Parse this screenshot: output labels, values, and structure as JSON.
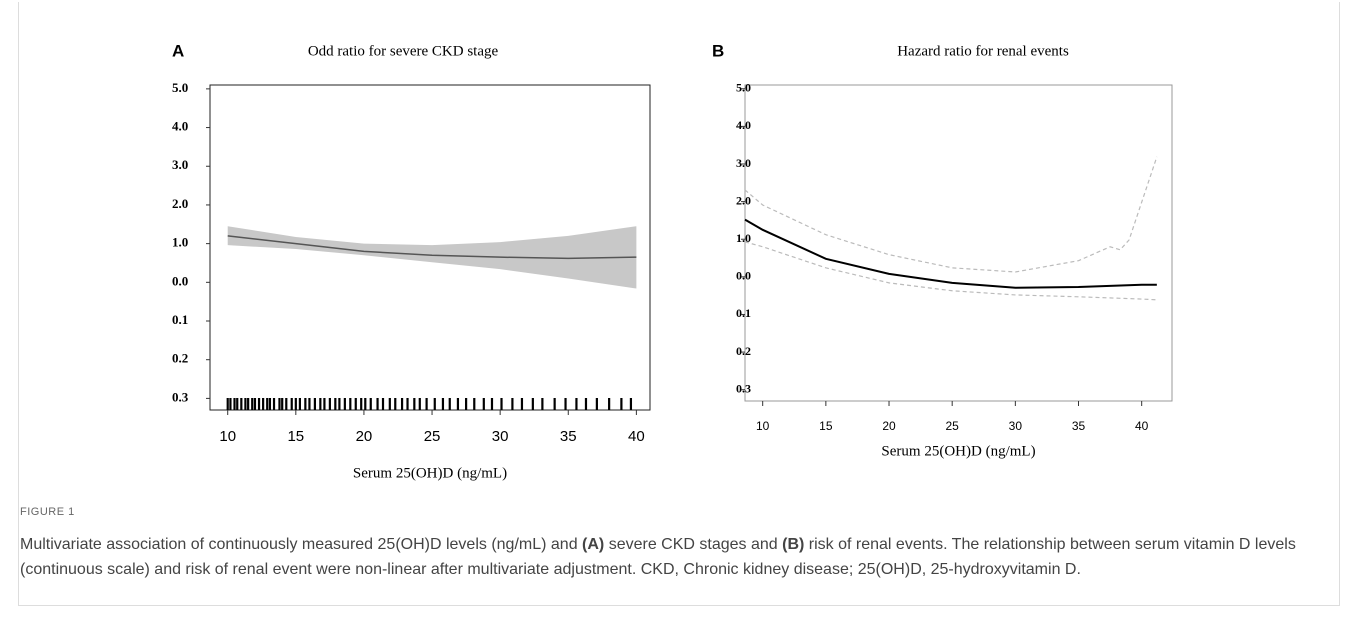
{
  "chart_data": [
    {
      "type": "line",
      "panel": "A",
      "title": "Odd ratio for severe CKD stage",
      "x_label": "Serum 25(OH)D (ng/mL)",
      "xlim": [
        8.7,
        41
      ],
      "xticks": [
        10,
        15,
        20,
        25,
        30,
        35,
        40
      ],
      "ylim": [
        -0.3,
        8.1
      ],
      "yticks": [
        {
          "value": 8,
          "label": "5.0"
        },
        {
          "value": 7,
          "label": "4.0"
        },
        {
          "value": 6,
          "label": "3.0"
        },
        {
          "value": 5,
          "label": "2.0"
        },
        {
          "value": 4,
          "label": "1.0"
        },
        {
          "value": 3,
          "label": "0.0"
        },
        {
          "value": 2,
          "label": "0.1"
        },
        {
          "value": 1,
          "label": "0.2"
        },
        {
          "value": 0,
          "label": "0.3"
        }
      ],
      "x": [
        10,
        15,
        20,
        25,
        30,
        35,
        40
      ],
      "series": [
        {
          "color": "#c8c8c8",
          "upper": [
            4.45,
            4.17,
            4.0,
            3.96,
            4.04,
            4.2,
            4.45
          ],
          "lower": [
            3.96,
            3.86,
            3.7,
            3.52,
            3.34,
            3.1,
            2.84
          ]
        },
        {
          "color": "#555555",
          "values": [
            4.2,
            4.0,
            3.8,
            3.7,
            3.65,
            3.62,
            3.65
          ]
        }
      ],
      "rug": [
        10,
        10.2,
        10.5,
        10.7,
        11,
        11.3,
        11.5,
        11.8,
        12,
        12.3,
        12.6,
        12.9,
        13.1,
        13.4,
        13.8,
        14,
        14.3,
        14.7,
        15,
        15.3,
        15.7,
        16,
        16.4,
        16.8,
        17.1,
        17.5,
        17.9,
        18.2,
        18.6,
        19,
        19.4,
        19.8,
        20.1,
        20.5,
        21,
        21.4,
        21.9,
        22.3,
        22.8,
        23.2,
        23.7,
        24.1,
        24.6,
        25.2,
        25.8,
        26.3,
        26.9,
        27.5,
        28.1,
        28.8,
        29.4,
        30.1,
        30.9,
        31.6,
        32.4,
        33.1,
        34,
        34.8,
        35.6,
        36.3,
        37.1,
        38,
        38.9,
        39.6
      ]
    },
    {
      "type": "line",
      "panel": "B",
      "title": "Hazard ratio for renal events",
      "x_label": "Serum 25(OH)D (ng/mL)",
      "xlim": [
        8.6,
        42.4
      ],
      "xticks": [
        10,
        15,
        20,
        25,
        30,
        35,
        40
      ],
      "ylim": [
        -0.3,
        8.1
      ],
      "yticks": [
        {
          "value": 8,
          "label": "5.0"
        },
        {
          "value": 7,
          "label": "4.0"
        },
        {
          "value": 6,
          "label": "3.0"
        },
        {
          "value": 5,
          "label": "2.0"
        },
        {
          "value": 4,
          "label": "1.0"
        },
        {
          "value": 3,
          "label": "0.0"
        },
        {
          "value": 2,
          "label": "0.1"
        },
        {
          "value": 1,
          "label": "0.2"
        },
        {
          "value": 0,
          "label": "0.3"
        }
      ],
      "series": [
        {
          "color": "#bbbbbb",
          "dashed": true,
          "x": [
            8.6,
            10,
            15,
            20,
            25,
            30,
            35,
            37.5,
            38.3,
            39,
            41.2
          ],
          "values": [
            5.31,
            4.91,
            4.12,
            3.59,
            3.24,
            3.13,
            3.43,
            3.8,
            3.72,
            3.98,
            6.19
          ]
        },
        {
          "color": "#bbbbbb",
          "dashed": true,
          "x": [
            8.6,
            10,
            15,
            20,
            25,
            30,
            35,
            40,
            41.2
          ],
          "values": [
            3.93,
            3.8,
            3.24,
            2.84,
            2.63,
            2.52,
            2.47,
            2.41,
            2.39
          ]
        },
        {
          "color": "#000000",
          "x": [
            8.6,
            10,
            15,
            20,
            25,
            30,
            35,
            40,
            41.2
          ],
          "values": [
            4.52,
            4.25,
            3.48,
            3.08,
            2.84,
            2.71,
            2.73,
            2.79,
            2.79
          ]
        }
      ]
    }
  ],
  "caption": {
    "label": "FIGURE 1",
    "parts": [
      {
        "text": "Multivariate association of continuously measured 25(OH)D levels (ng/mL) and "
      },
      {
        "text": "(A)",
        "bold": true
      },
      {
        "text": " severe CKD stages and "
      },
      {
        "text": "(B)",
        "bold": true
      },
      {
        "text": " risk of renal events. The relationship between serum vitamin D levels (continuous scale) and risk of renal event were non-linear after multivariate adjustment. CKD, Chronic kidney disease; 25(OH)D, 25-hydroxyvitamin D."
      }
    ]
  }
}
